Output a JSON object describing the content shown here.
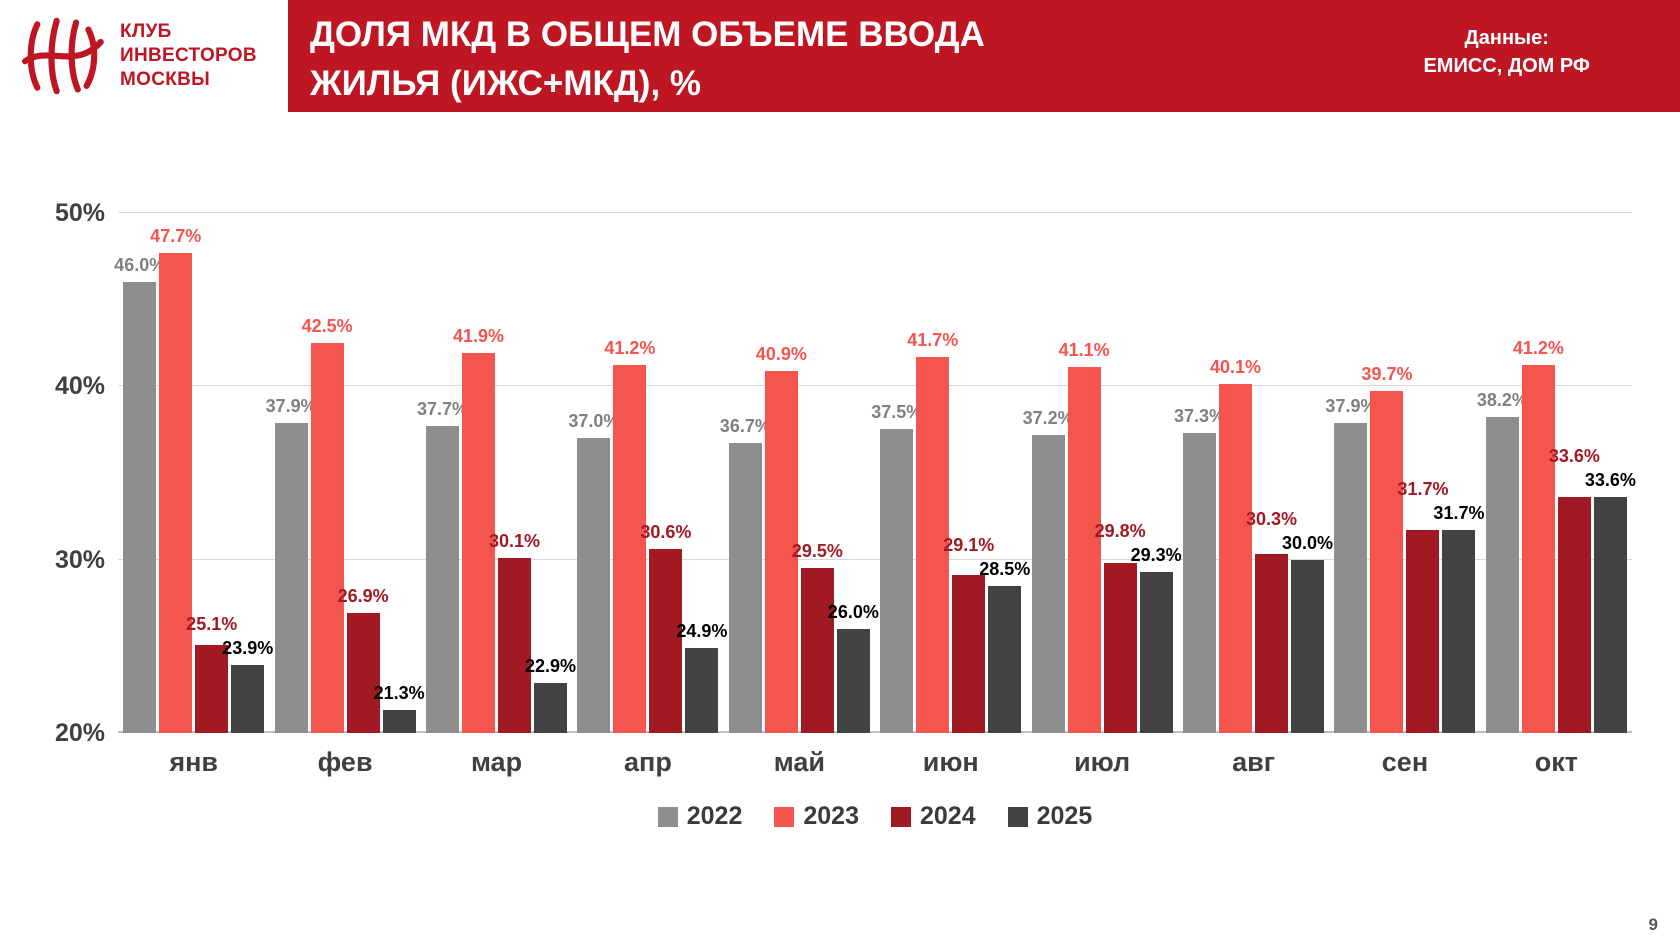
{
  "header": {
    "logo_lines": [
      "КЛУБ",
      "ИНВЕСТОРОВ",
      "МОСКВЫ"
    ],
    "title_line1": "ДОЛЯ МКД В ОБЩЕМ ОБЪЕМЕ ВВОДА",
    "title_line2": "ЖИЛЬЯ (ИЖС+МКД),  %",
    "source_line1": "Данные:",
    "source_line2": "ЕМИСС, ДОМ РФ"
  },
  "page_number": "9",
  "colors": {
    "header_red": "#BE1622",
    "grid": "#D9D9D9",
    "axis_text": "#404040"
  },
  "chart_data": {
    "type": "bar",
    "title": "Доля МКД в общем объеме ввода жилья (ИЖС+МКД), %",
    "xlabel": "",
    "ylabel": "%",
    "ylim": [
      20,
      52
    ],
    "yticks": [
      20,
      30,
      40,
      50
    ],
    "grid": true,
    "legend_position": "bottom",
    "categories": [
      "янв",
      "фев",
      "мар",
      "апр",
      "май",
      "июн",
      "июл",
      "авг",
      "сен",
      "окт"
    ],
    "series": [
      {
        "name": "2022",
        "color": "#8E8E8E",
        "label_color": "#808080",
        "values": [
          46.0,
          37.9,
          37.7,
          37.0,
          36.7,
          37.5,
          37.2,
          37.3,
          37.9,
          38.2
        ]
      },
      {
        "name": "2023",
        "color": "#F4554E",
        "label_color": "#F4554E",
        "values": [
          47.7,
          42.5,
          41.9,
          41.2,
          40.9,
          41.7,
          41.1,
          40.1,
          39.7,
          41.2
        ]
      },
      {
        "name": "2024",
        "color": "#A11A23",
        "label_color": "#A11A23",
        "values": [
          25.1,
          26.9,
          30.1,
          30.6,
          29.5,
          29.1,
          29.8,
          30.3,
          31.7,
          33.6
        ]
      },
      {
        "name": "2025",
        "color": "#424242",
        "label_color": "#000000",
        "values": [
          23.9,
          21.3,
          22.9,
          24.9,
          26.0,
          28.5,
          29.3,
          30.0,
          31.7,
          33.6
        ]
      }
    ]
  }
}
